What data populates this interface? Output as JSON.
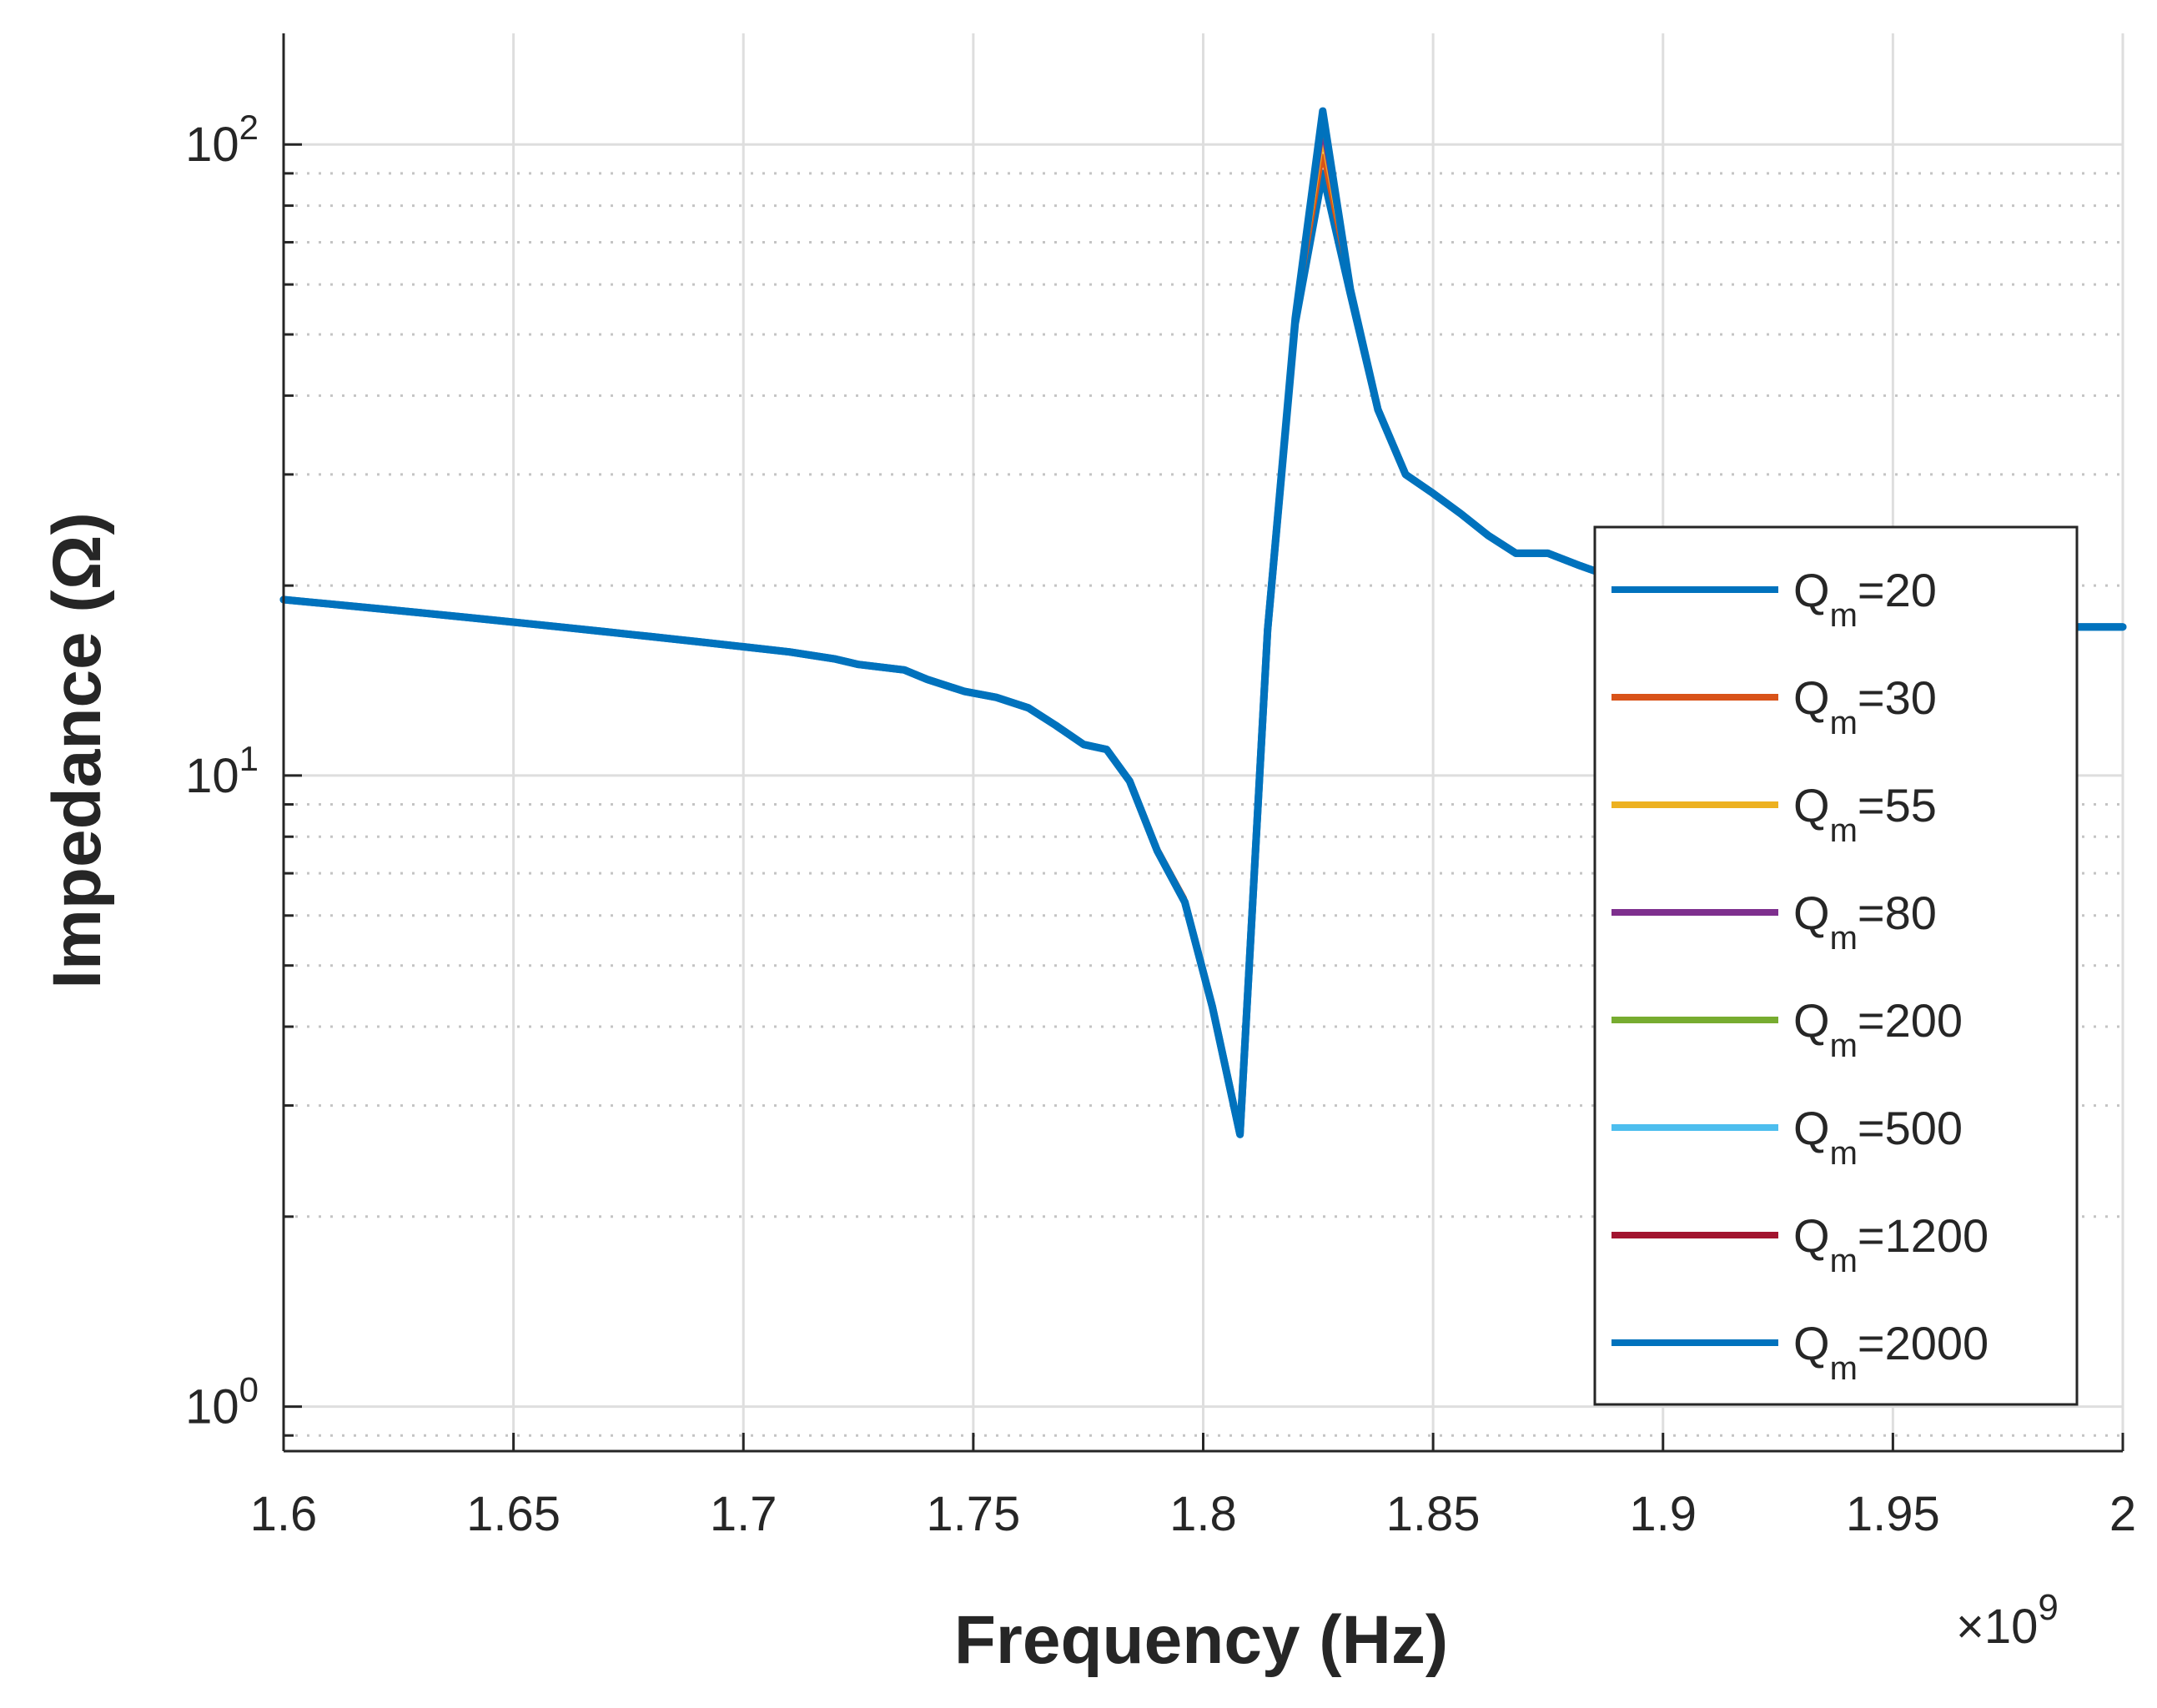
{
  "chart_data": {
    "type": "line",
    "title": "",
    "xlabel": "Frequency (Hz)",
    "ylabel": "Impedance (Ω)",
    "x_exponent_label": "×10",
    "x_exponent": "9",
    "xlim": [
      1.6,
      2.0
    ],
    "ylim": [
      0.85,
      150
    ],
    "yscale": "log",
    "grid": true,
    "legend_position": "right",
    "x_ticks": [
      {
        "value": 1.6,
        "label": "1.6"
      },
      {
        "value": 1.65,
        "label": "1.65"
      },
      {
        "value": 1.7,
        "label": "1.7"
      },
      {
        "value": 1.75,
        "label": "1.75"
      },
      {
        "value": 1.8,
        "label": "1.8"
      },
      {
        "value": 1.85,
        "label": "1.85"
      },
      {
        "value": 1.9,
        "label": "1.9"
      },
      {
        "value": 1.95,
        "label": "1.95"
      },
      {
        "value": 2.0,
        "label": "2"
      }
    ],
    "y_ticks": [
      {
        "value": 1,
        "base": "10",
        "exp": "0"
      },
      {
        "value": 10,
        "base": "10",
        "exp": "1"
      },
      {
        "value": 100,
        "base": "10",
        "exp": "2"
      }
    ],
    "x": [
      1.6,
      1.61,
      1.62,
      1.63,
      1.64,
      1.65,
      1.66,
      1.67,
      1.68,
      1.69,
      1.7,
      1.71,
      1.72,
      1.725,
      1.735,
      1.74,
      1.748,
      1.755,
      1.762,
      1.768,
      1.774,
      1.779,
      1.784,
      1.79,
      1.796,
      1.802,
      1.808,
      1.814,
      1.82,
      1.826,
      1.832,
      1.838,
      1.844,
      1.85,
      1.856,
      1.862,
      1.868,
      1.875,
      1.882,
      1.89,
      1.9,
      1.91,
      1.92,
      1.93,
      1.94,
      1.95,
      1.96,
      1.97,
      1.98,
      1.99,
      2.0
    ],
    "series": [
      {
        "name": "Q_m=20",
        "color": "#0072BD",
        "values": [
          19.0,
          18.7,
          18.4,
          18.1,
          17.8,
          17.5,
          17.2,
          16.9,
          16.6,
          16.3,
          16.0,
          15.7,
          15.3,
          15.0,
          14.7,
          14.2,
          13.6,
          13.3,
          12.8,
          12.0,
          11.2,
          11.0,
          9.8,
          7.6,
          6.3,
          4.3,
          2.7,
          17.0,
          52.0,
          90.0,
          58.0,
          38.0,
          30.0,
          28.0,
          26.0,
          24.0,
          22.5,
          22.5,
          21.5,
          20.5,
          19.6,
          19.0,
          18.6,
          18.3,
          18.0,
          17.8,
          17.6,
          17.4,
          17.3,
          17.2,
          17.2
        ]
      },
      {
        "name": "Q_m=30",
        "color": "#D95319",
        "values": [
          19.0,
          18.7,
          18.4,
          18.1,
          17.8,
          17.5,
          17.2,
          16.9,
          16.6,
          16.3,
          16.0,
          15.7,
          15.3,
          15.0,
          14.7,
          14.2,
          13.6,
          13.3,
          12.8,
          12.0,
          11.2,
          11.0,
          9.8,
          7.7,
          6.4,
          4.3,
          2.7,
          17.0,
          53.0,
          96.0,
          59.0,
          38.0,
          30.0,
          28.0,
          26.0,
          24.0,
          22.5,
          22.5,
          21.5,
          20.5,
          19.6,
          19.0,
          18.6,
          18.3,
          18.0,
          17.8,
          17.6,
          17.4,
          17.3,
          17.2,
          17.2
        ]
      },
      {
        "name": "Q_m=55",
        "color": "#EDB120",
        "values": [
          19.0,
          18.7,
          18.4,
          18.1,
          17.8,
          17.5,
          17.2,
          16.9,
          16.6,
          16.3,
          16.0,
          15.7,
          15.3,
          15.0,
          14.7,
          14.2,
          13.6,
          13.3,
          12.8,
          12.0,
          11.2,
          11.0,
          9.8,
          7.6,
          6.3,
          4.3,
          2.7,
          17.0,
          53.0,
          102.0,
          59.0,
          38.0,
          30.0,
          28.0,
          26.0,
          24.0,
          22.5,
          22.5,
          21.5,
          20.5,
          19.6,
          19.0,
          18.6,
          18.3,
          18.0,
          17.8,
          17.6,
          17.4,
          17.3,
          17.2,
          17.2
        ]
      },
      {
        "name": "Q_m=80",
        "color": "#7E2F8E",
        "values": [
          19.0,
          18.7,
          18.4,
          18.1,
          17.8,
          17.5,
          17.2,
          16.9,
          16.6,
          16.3,
          16.0,
          15.7,
          15.3,
          15.0,
          14.7,
          14.2,
          13.6,
          13.3,
          12.8,
          12.0,
          11.2,
          11.0,
          9.8,
          7.6,
          6.3,
          4.3,
          2.7,
          17.0,
          53.0,
          105.0,
          59.0,
          38.0,
          30.0,
          28.0,
          26.0,
          24.0,
          22.5,
          22.5,
          21.5,
          20.5,
          19.6,
          19.0,
          18.6,
          18.3,
          18.0,
          17.8,
          17.6,
          17.4,
          17.3,
          17.2,
          17.2
        ]
      },
      {
        "name": "Q_m=200",
        "color": "#77AC30",
        "values": [
          19.0,
          18.7,
          18.4,
          18.1,
          17.8,
          17.5,
          17.2,
          16.9,
          16.6,
          16.3,
          16.0,
          15.7,
          15.3,
          15.0,
          14.7,
          14.2,
          13.6,
          13.3,
          12.8,
          12.0,
          11.2,
          11.0,
          9.8,
          7.6,
          6.3,
          4.3,
          2.7,
          17.0,
          53.0,
          108.0,
          59.0,
          38.0,
          30.0,
          28.0,
          26.0,
          24.0,
          22.5,
          22.5,
          21.5,
          20.5,
          19.6,
          19.0,
          18.6,
          18.3,
          18.0,
          17.8,
          17.6,
          17.4,
          17.3,
          17.2,
          17.2
        ]
      },
      {
        "name": "Q_m=500",
        "color": "#4DBEEE",
        "values": [
          19.0,
          18.7,
          18.4,
          18.1,
          17.8,
          17.5,
          17.2,
          16.9,
          16.6,
          16.3,
          16.0,
          15.7,
          15.3,
          15.0,
          14.7,
          14.2,
          13.6,
          13.3,
          12.8,
          12.0,
          11.2,
          11.0,
          9.8,
          7.6,
          6.3,
          4.3,
          2.7,
          17.0,
          53.0,
          110.0,
          59.0,
          38.0,
          30.0,
          28.0,
          26.0,
          24.0,
          22.5,
          22.5,
          21.5,
          20.5,
          19.6,
          19.0,
          18.6,
          18.3,
          18.0,
          17.8,
          17.6,
          17.4,
          17.3,
          17.2,
          17.2
        ]
      },
      {
        "name": "Q_m=1200",
        "color": "#A2142F",
        "values": [
          19.0,
          18.7,
          18.4,
          18.1,
          17.8,
          17.5,
          17.2,
          16.9,
          16.6,
          16.3,
          16.0,
          15.7,
          15.3,
          15.0,
          14.7,
          14.2,
          13.6,
          13.3,
          12.8,
          12.0,
          11.2,
          11.0,
          9.8,
          7.6,
          6.3,
          4.3,
          2.7,
          17.0,
          53.0,
          112.0,
          59.0,
          38.0,
          30.0,
          28.0,
          26.0,
          24.0,
          22.5,
          22.5,
          21.5,
          20.5,
          19.6,
          19.0,
          18.6,
          18.3,
          18.0,
          17.8,
          17.6,
          17.4,
          17.3,
          17.2,
          17.2
        ]
      },
      {
        "name": "Q_m=2000",
        "color": "#0072BD",
        "values": [
          19.0,
          18.7,
          18.4,
          18.1,
          17.8,
          17.5,
          17.2,
          16.9,
          16.6,
          16.3,
          16.0,
          15.7,
          15.3,
          15.0,
          14.7,
          14.2,
          13.6,
          13.3,
          12.8,
          12.0,
          11.2,
          11.0,
          9.8,
          7.6,
          6.3,
          4.3,
          2.7,
          17.0,
          53.0,
          113.0,
          59.0,
          38.0,
          30.0,
          28.0,
          26.0,
          24.0,
          22.5,
          22.5,
          21.5,
          20.5,
          19.6,
          19.0,
          18.6,
          18.3,
          18.0,
          17.8,
          17.6,
          17.4,
          17.3,
          17.2,
          17.2
        ]
      }
    ],
    "legend": [
      {
        "base": "Q",
        "sub": "m",
        "rest": "=20",
        "color": "#0072BD"
      },
      {
        "base": "Q",
        "sub": "m",
        "rest": "=30",
        "color": "#D95319"
      },
      {
        "base": "Q",
        "sub": "m",
        "rest": "=55",
        "color": "#EDB120"
      },
      {
        "base": "Q",
        "sub": "m",
        "rest": "=80",
        "color": "#7E2F8E"
      },
      {
        "base": "Q",
        "sub": "m",
        "rest": "=200",
        "color": "#77AC30"
      },
      {
        "base": "Q",
        "sub": "m",
        "rest": "=500",
        "color": "#4DBEEE"
      },
      {
        "base": "Q",
        "sub": "m",
        "rest": "=1200",
        "color": "#A2142F"
      },
      {
        "base": "Q",
        "sub": "m",
        "rest": "=2000",
        "color": "#0072BD"
      }
    ]
  }
}
